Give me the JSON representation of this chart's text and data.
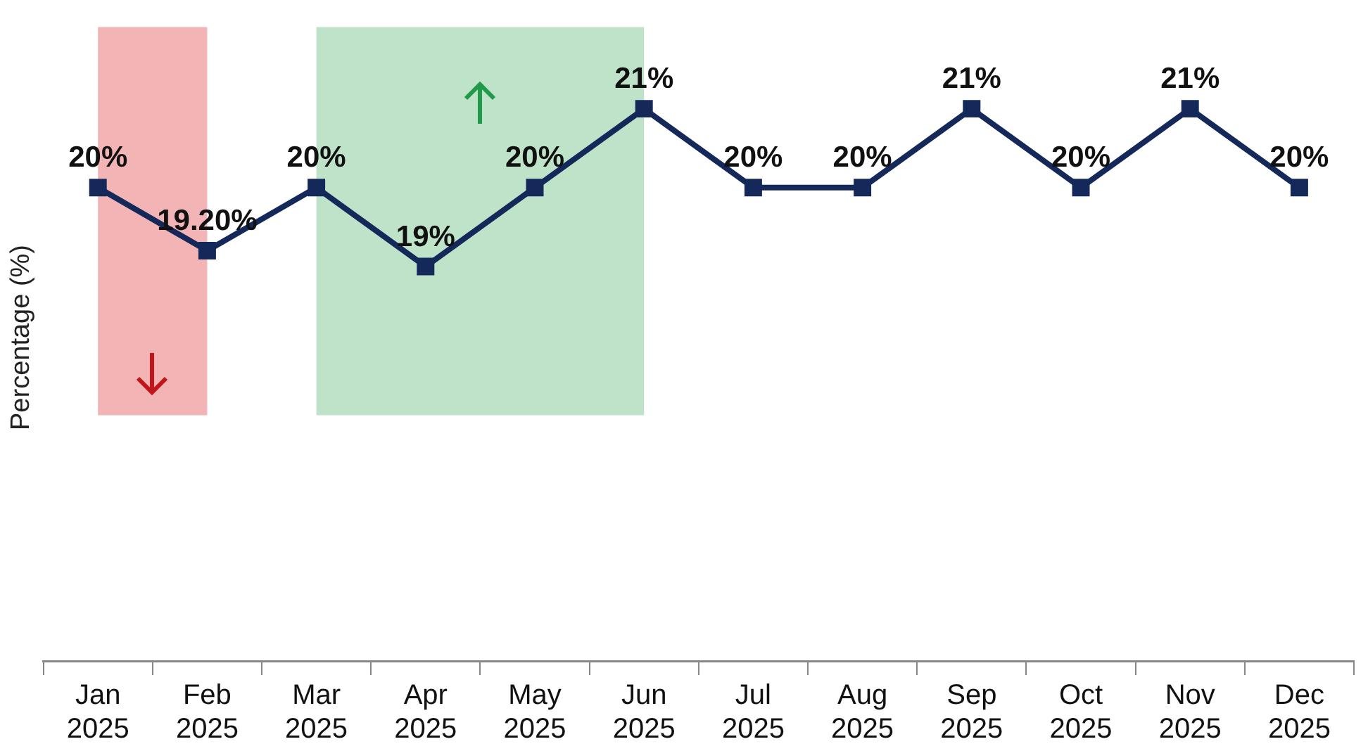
{
  "chart_data": {
    "type": "line",
    "ylabel": "Percentage (%)",
    "categories": [
      "Jan 2025",
      "Feb 2025",
      "Mar 2025",
      "Apr 2025",
      "May 2025",
      "Jun 2025",
      "Jul 2025",
      "Aug 2025",
      "Sep 2025",
      "Oct 2025",
      "Nov 2025",
      "Dec 2025"
    ],
    "series": [
      {
        "color": "#14285a",
        "values": [
          20,
          19.2,
          20,
          19,
          20,
          21,
          20,
          20,
          21,
          20,
          21,
          20
        ],
        "value_labels": [
          "20%",
          "19.20%",
          "20%",
          "19%",
          "20%",
          "21%",
          "20%",
          "20%",
          "21%",
          "20%",
          "21%",
          "20%"
        ]
      }
    ],
    "bands": [
      {
        "axis": "x",
        "from": "Jan 2025",
        "to": "Feb 2025",
        "color": "#f2b4b4"
      },
      {
        "axis": "x",
        "from": "Mar 2025",
        "to": "Jun 2025",
        "color": "#bfe3c8"
      }
    ],
    "marker": "square",
    "line_style": "solid",
    "grid": false,
    "legend": false,
    "tick_labels": "x"
  }
}
